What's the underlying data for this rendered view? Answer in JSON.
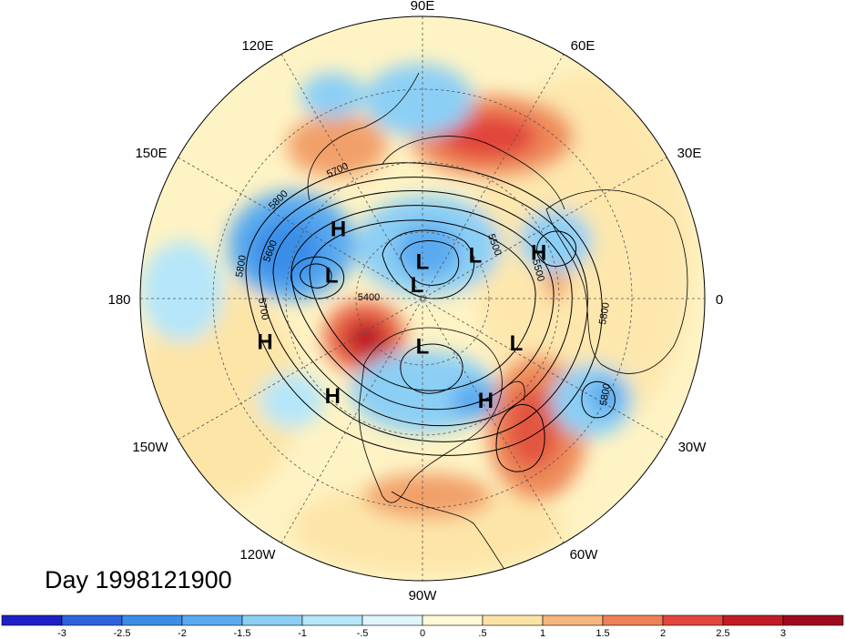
{
  "title": "Day 1998121900",
  "longitude_labels": [
    "90E",
    "60E",
    "30E",
    "0",
    "30W",
    "60W",
    "90W",
    "120W",
    "150W",
    "180",
    "150E",
    "120E"
  ],
  "pressure_centers": [
    {
      "type": "L",
      "lon": 90,
      "lat": 78
    },
    {
      "type": "H",
      "lon": 140,
      "lat": 55
    },
    {
      "type": "L",
      "lon": 165,
      "lat": 60
    },
    {
      "type": "L",
      "lon": 110,
      "lat": 85
    },
    {
      "type": "L",
      "lon": 40,
      "lat": 68
    },
    {
      "type": "H",
      "lon": 22,
      "lat": 50
    },
    {
      "type": "H",
      "lon": 195,
      "lat": 38
    },
    {
      "type": "H",
      "lon": 227,
      "lat": 48
    },
    {
      "type": "L",
      "lon": 270,
      "lat": 75
    },
    {
      "type": "L",
      "lon": 335,
      "lat": 57
    },
    {
      "type": "H",
      "lon": 302,
      "lat": 52
    }
  ],
  "contour_labels": [
    "5700",
    "5800",
    "5600",
    "5800",
    "5700",
    "5500",
    "5400",
    "5500",
    "5800",
    "5800"
  ],
  "colorbar": {
    "ticks": [
      "-3",
      "-2.5",
      "-2",
      "-1.5",
      "-1",
      "-.5",
      "0",
      ".5",
      "1",
      "1.5",
      "2",
      "2.5",
      "3"
    ],
    "colors": [
      "#1f1fc7",
      "#2f63de",
      "#3b8ee8",
      "#5aaaf0",
      "#8ccff5",
      "#b5e6f9",
      "#def5fb",
      "#fff9d6",
      "#fbe3a6",
      "#f6b57a",
      "#ef7f58",
      "#e2453a",
      "#c11c26",
      "#9e0b1e"
    ]
  },
  "colors": {
    "frame": "#000000",
    "background": "#ffffff"
  }
}
